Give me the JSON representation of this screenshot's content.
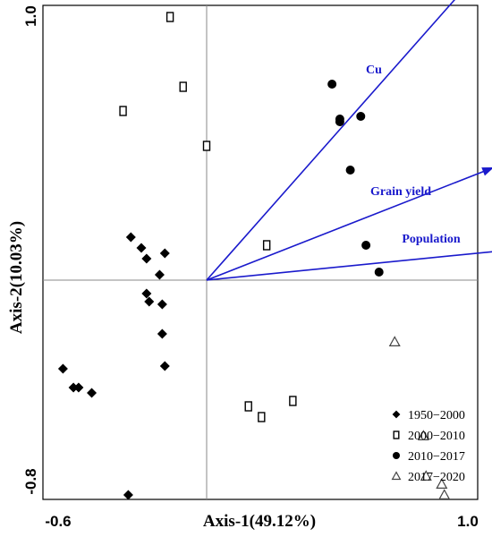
{
  "chart_data": {
    "type": "scatter",
    "title": "",
    "xlabel": "Axis-1(49.12%)",
    "ylabel": "Axis-2(10.03%)",
    "xlim": [
      -0.6,
      1.0
    ],
    "ylim": [
      -0.8,
      1.0
    ],
    "x_tick_labels": [
      "-0.6",
      "1.0"
    ],
    "y_tick_labels": [
      "1.0",
      "-0.8"
    ],
    "grid": false,
    "reference_lines": {
      "x": 0,
      "y": 0
    },
    "legend_position": "bottom-right",
    "series": [
      {
        "name": "1950−2000",
        "marker": "diamond-filled",
        "color": "#000000",
        "points": [
          [
            -0.29,
            0.16
          ],
          [
            -0.25,
            0.12
          ],
          [
            -0.23,
            0.08
          ],
          [
            -0.18,
            0.02
          ],
          [
            -0.16,
            0.1
          ],
          [
            -0.23,
            -0.05
          ],
          [
            -0.22,
            -0.08
          ],
          [
            -0.17,
            -0.09
          ],
          [
            -0.17,
            -0.2
          ],
          [
            -0.16,
            -0.32
          ],
          [
            -0.55,
            -0.33
          ],
          [
            -0.51,
            -0.4
          ],
          [
            -0.49,
            -0.4
          ],
          [
            -0.44,
            -0.42
          ],
          [
            -0.3,
            -0.8
          ]
        ]
      },
      {
        "name": "2000−2010",
        "marker": "rect-open",
        "color": "#000000",
        "points": [
          [
            -0.14,
            0.98
          ],
          [
            -0.09,
            0.72
          ],
          [
            -0.32,
            0.63
          ],
          [
            0.0,
            0.5
          ],
          [
            0.23,
            0.13
          ],
          [
            0.16,
            -0.47
          ],
          [
            0.21,
            -0.51
          ],
          [
            0.33,
            -0.45
          ]
        ]
      },
      {
        "name": "2010−2017",
        "marker": "circle-filled",
        "color": "#000000",
        "points": [
          [
            0.48,
            0.73
          ],
          [
            0.51,
            0.6
          ],
          [
            0.51,
            0.59
          ],
          [
            0.59,
            0.61
          ],
          [
            0.55,
            0.41
          ],
          [
            0.61,
            0.13
          ],
          [
            0.66,
            0.03
          ]
        ]
      },
      {
        "name": "2017−2020",
        "marker": "triangle-open",
        "color": "#000000",
        "points": [
          [
            0.72,
            -0.23
          ],
          [
            0.83,
            -0.58
          ],
          [
            0.84,
            -0.73
          ],
          [
            0.91,
            -0.8
          ],
          [
            0.9,
            -0.76
          ]
        ]
      }
    ],
    "vectors": [
      {
        "label": "Cu",
        "end": [
          1.0,
          1.1
        ],
        "color": "#1a1acc"
      },
      {
        "label": "Grain yield",
        "end": [
          1.1,
          0.42
        ],
        "color": "#1a1acc"
      },
      {
        "label": "Population",
        "end": [
          1.55,
          0.15
        ],
        "color": "#1a1acc"
      }
    ]
  }
}
